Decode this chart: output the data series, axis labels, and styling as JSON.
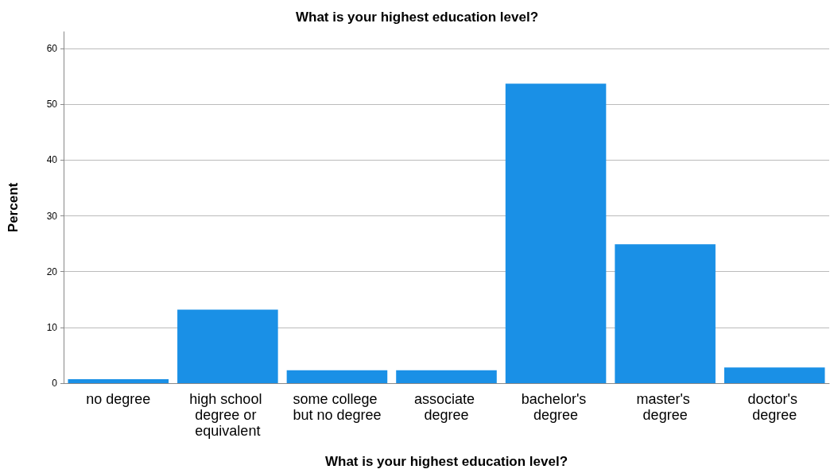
{
  "chart_data": {
    "type": "bar",
    "title": "What is your highest education level?",
    "xlabel": "What is your highest education level?",
    "ylabel": "Percent",
    "categories": [
      "no degree",
      "high school degree or equivalent",
      "some college but no degree",
      "associate degree",
      "bachelor's degree",
      "master's degree",
      "doctor's degree"
    ],
    "values": [
      0.7,
      13.2,
      2.3,
      2.3,
      53.7,
      24.9,
      2.8
    ],
    "color": "#1a90e6",
    "ylim": [
      0,
      63
    ],
    "yticks": [
      0,
      10,
      20,
      30,
      40,
      50,
      60
    ],
    "grid": "y"
  }
}
